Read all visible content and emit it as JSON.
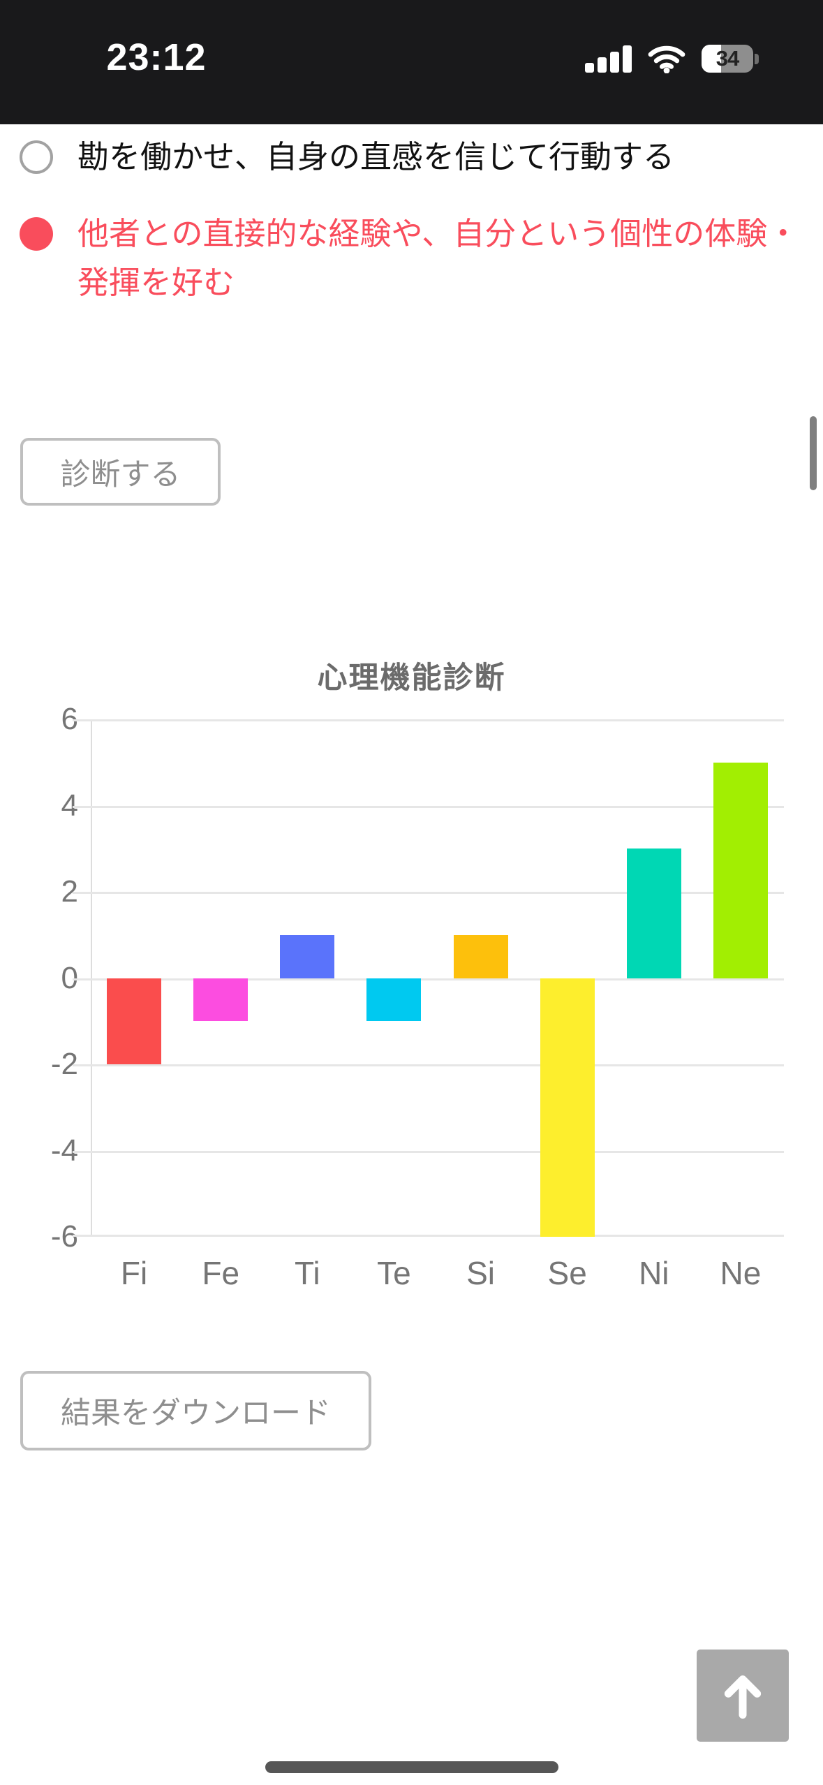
{
  "status_bar": {
    "time": "23:12",
    "battery_percent": "34"
  },
  "question": {
    "options": [
      {
        "label": "勘を働かせ、自身の直感を信じて行動する",
        "selected": false
      },
      {
        "label": "他者との直接的な経験や、自分という個性の体験・発揮を好む",
        "selected": true
      }
    ]
  },
  "buttons": {
    "diagnose_label": "診断する",
    "download_label": "結果をダウンロード"
  },
  "chart_data": {
    "type": "bar",
    "title": "心理機能診断",
    "categories": [
      "Fi",
      "Fe",
      "Ti",
      "Te",
      "Si",
      "Se",
      "Ni",
      "Ne"
    ],
    "values": [
      -2,
      -1,
      1,
      -1,
      1,
      -6,
      3,
      5
    ],
    "bar_colors": [
      "#FA4D4D",
      "#FC4DE0",
      "#5A73FB",
      "#00C9F0",
      "#FDC00C",
      "#FDEE2D",
      "#00D7B4",
      "#A2EE02"
    ],
    "ylim": [
      -6,
      6
    ],
    "yticks": [
      6,
      4,
      2,
      0,
      -2,
      -4,
      -6
    ],
    "xlabel": "",
    "ylabel": "",
    "grid": true,
    "legend": false
  },
  "colors": {
    "accent_red": "#F94D5C",
    "option_text": "#111111"
  }
}
